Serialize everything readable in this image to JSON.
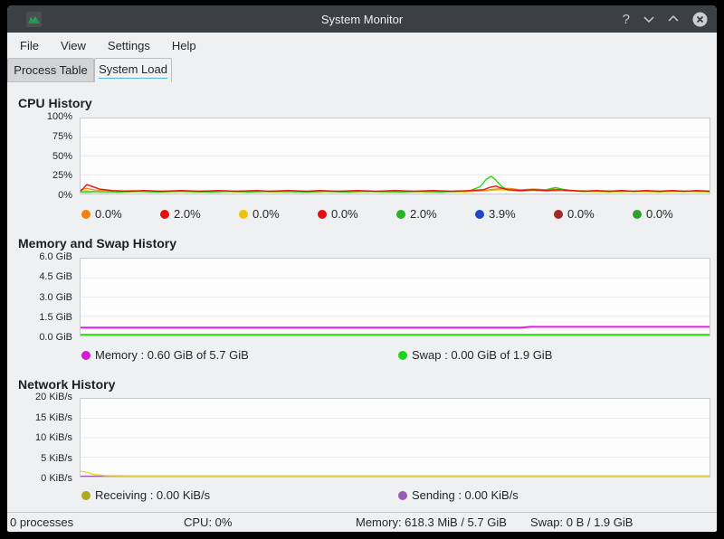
{
  "window": {
    "title": "System Monitor",
    "help_glyph": "?"
  },
  "menu": {
    "file": "File",
    "view": "View",
    "settings": "Settings",
    "help": "Help"
  },
  "tabs": {
    "process_table": "Process Table",
    "system_load": "System Load"
  },
  "cpu": {
    "title": "CPU History",
    "y_ticks": [
      "100%",
      "75%",
      "50%",
      "25%",
      "0%"
    ],
    "legend": [
      {
        "color": "#f2820d",
        "value": "0.0%"
      },
      {
        "color": "#e01010",
        "value": "2.0%"
      },
      {
        "color": "#edc211",
        "value": "0.0%"
      },
      {
        "color": "#e01010",
        "value": "0.0%"
      },
      {
        "color": "#25b525",
        "value": "2.0%"
      },
      {
        "color": "#1d46c8",
        "value": "3.9%"
      },
      {
        "color": "#9e2b25",
        "value": "0.0%"
      },
      {
        "color": "#2da12d",
        "value": "0.0%"
      }
    ],
    "chart": {
      "type": "line",
      "ymax": 100,
      "grid": [
        0.25,
        0.5,
        0.75
      ],
      "grid_color": "#e9eaeb",
      "series": [
        {
          "name": "cpu-yellow",
          "color": "#eec61a",
          "width": 1.2,
          "points": [
            [
              0,
              4
            ],
            [
              2,
              3
            ],
            [
              4,
              2.5
            ],
            [
              7,
              2
            ],
            [
              10,
              2.5
            ],
            [
              13,
              2
            ],
            [
              16,
              2.5
            ],
            [
              19,
              2
            ],
            [
              22,
              2.5
            ],
            [
              25,
              2
            ],
            [
              28,
              2.5
            ],
            [
              31,
              2
            ],
            [
              34,
              2.5
            ],
            [
              37,
              2
            ],
            [
              40,
              2.5
            ],
            [
              43,
              2
            ],
            [
              46,
              2.5
            ],
            [
              49,
              2
            ],
            [
              52,
              2.5
            ],
            [
              55,
              2
            ],
            [
              58,
              2.5
            ],
            [
              61,
              2
            ],
            [
              63,
              3
            ],
            [
              65,
              4
            ],
            [
              67,
              5
            ],
            [
              68,
              4
            ],
            [
              70,
              3
            ],
            [
              72,
              4
            ],
            [
              74,
              3
            ],
            [
              76,
              3.5
            ],
            [
              78,
              3
            ],
            [
              80,
              2.5
            ],
            [
              84,
              2
            ],
            [
              88,
              2.5
            ],
            [
              92,
              2
            ],
            [
              96,
              2.5
            ],
            [
              100,
              2
            ]
          ]
        },
        {
          "name": "cpu-orange",
          "color": "#f0820f",
          "width": 1.2,
          "points": [
            [
              0,
              5
            ],
            [
              1,
              7
            ],
            [
              2,
              5
            ],
            [
              4,
              4
            ],
            [
              6,
              3
            ],
            [
              8,
              4
            ],
            [
              11,
              3
            ],
            [
              14,
              3.5
            ],
            [
              17,
              3
            ],
            [
              20,
              3.5
            ],
            [
              23,
              3
            ],
            [
              26,
              3.5
            ],
            [
              29,
              3
            ],
            [
              32,
              3.5
            ],
            [
              35,
              3
            ],
            [
              38,
              3.5
            ],
            [
              41,
              3
            ],
            [
              44,
              3.5
            ],
            [
              47,
              3
            ],
            [
              50,
              3.5
            ],
            [
              53,
              3
            ],
            [
              56,
              3.5
            ],
            [
              59,
              3
            ],
            [
              62,
              3.5
            ],
            [
              64,
              4
            ],
            [
              66,
              6
            ],
            [
              68,
              7
            ],
            [
              69,
              6
            ],
            [
              70,
              5
            ],
            [
              72,
              6
            ],
            [
              74,
              5
            ],
            [
              75,
              6
            ],
            [
              77,
              5
            ],
            [
              79,
              4
            ],
            [
              81,
              3.5
            ],
            [
              83,
              3
            ],
            [
              85,
              3.5
            ],
            [
              87,
              3
            ],
            [
              89,
              3.5
            ],
            [
              91,
              3
            ],
            [
              93,
              3.5
            ],
            [
              95,
              3
            ],
            [
              97,
              3.5
            ],
            [
              100,
              3
            ]
          ]
        },
        {
          "name": "cpu-green",
          "color": "#2ad615",
          "width": 1.4,
          "points": [
            [
              0,
              2
            ],
            [
              3,
              2.5
            ],
            [
              6,
              2
            ],
            [
              9,
              3
            ],
            [
              12,
              2
            ],
            [
              15,
              3
            ],
            [
              18,
              2.5
            ],
            [
              21,
              2
            ],
            [
              24,
              3
            ],
            [
              27,
              2
            ],
            [
              30,
              3
            ],
            [
              33,
              2.5
            ],
            [
              36,
              2
            ],
            [
              39,
              3
            ],
            [
              42,
              2
            ],
            [
              45,
              3
            ],
            [
              48,
              2.5
            ],
            [
              51,
              2
            ],
            [
              54,
              3
            ],
            [
              57,
              2
            ],
            [
              60,
              3
            ],
            [
              62,
              4
            ],
            [
              63.5,
              9
            ],
            [
              64.5,
              19
            ],
            [
              65.3,
              23
            ],
            [
              66,
              18
            ],
            [
              67,
              9
            ],
            [
              68,
              5
            ],
            [
              69.5,
              4
            ],
            [
              71,
              5
            ],
            [
              72.5,
              4
            ],
            [
              74,
              5
            ],
            [
              75.5,
              8
            ],
            [
              76.5,
              6
            ],
            [
              78,
              4
            ],
            [
              80,
              3
            ],
            [
              83,
              3.5
            ],
            [
              86,
              3
            ],
            [
              89,
              3.5
            ],
            [
              92,
              3
            ],
            [
              95,
              3.5
            ],
            [
              98,
              3
            ],
            [
              100,
              3.5
            ]
          ]
        },
        {
          "name": "cpu-red",
          "color": "#e41414",
          "width": 1.4,
          "points": [
            [
              0,
              3
            ],
            [
              1,
              12
            ],
            [
              2,
              9
            ],
            [
              3,
              6
            ],
            [
              5,
              4
            ],
            [
              8,
              3
            ],
            [
              10,
              4
            ],
            [
              13,
              3
            ],
            [
              16,
              4
            ],
            [
              19,
              3
            ],
            [
              22,
              4
            ],
            [
              25,
              3
            ],
            [
              28,
              4
            ],
            [
              30,
              3
            ],
            [
              33,
              4
            ],
            [
              36,
              3
            ],
            [
              38,
              4
            ],
            [
              41,
              3
            ],
            [
              44,
              4
            ],
            [
              47,
              3
            ],
            [
              50,
              4
            ],
            [
              53,
              3
            ],
            [
              56,
              4
            ],
            [
              59,
              3
            ],
            [
              62,
              4
            ],
            [
              64,
              5
            ],
            [
              65,
              8
            ],
            [
              66,
              10
            ],
            [
              67,
              7
            ],
            [
              68,
              5
            ],
            [
              70,
              4
            ],
            [
              72,
              5
            ],
            [
              74,
              4
            ],
            [
              76,
              5
            ],
            [
              78,
              4
            ],
            [
              80,
              3
            ],
            [
              82,
              4
            ],
            [
              84,
              3
            ],
            [
              86,
              4
            ],
            [
              88,
              3
            ],
            [
              90,
              4
            ],
            [
              92,
              3
            ],
            [
              94,
              4
            ],
            [
              96,
              3
            ],
            [
              98,
              4
            ],
            [
              100,
              3
            ]
          ]
        }
      ]
    }
  },
  "memory": {
    "title": "Memory and Swap History",
    "y_ticks": [
      "6.0 GiB",
      "4.5 GiB",
      "3.0 GiB",
      "1.5 GiB",
      "0.0 GiB"
    ],
    "legend": [
      {
        "color": "#d718d7",
        "label": "Memory : 0.60 GiB of 5.7 GiB"
      },
      {
        "color": "#1ad61a",
        "label": "Swap : 0.00 GiB of 1.9 GiB"
      }
    ],
    "chart": {
      "type": "line",
      "ymax": 6,
      "grid": [
        0.25,
        0.5,
        0.75
      ],
      "grid_color": "#e9eaeb",
      "series": [
        {
          "name": "memory-used",
          "color": "#e81ae8",
          "width": 2,
          "points": [
            [
              0,
              0.62
            ],
            [
              30,
              0.62
            ],
            [
              55,
              0.62
            ],
            [
              70,
              0.62
            ],
            [
              71.5,
              0.68
            ],
            [
              100,
              0.68
            ]
          ]
        },
        {
          "name": "swap-used",
          "color": "#33e81a",
          "width": 2,
          "points": [
            [
              0,
              0.07
            ],
            [
              100,
              0.07
            ]
          ]
        }
      ]
    }
  },
  "network": {
    "title": "Network History",
    "y_ticks": [
      "20 KiB/s",
      "15 KiB/s",
      "10 KiB/s",
      "5 KiB/s",
      "0 KiB/s"
    ],
    "legend": [
      {
        "color": "#b0a81f",
        "label": "Receiving : 0.00 KiB/s"
      },
      {
        "color": "#9b59b6",
        "label": "Sending : 0.00 KiB/s"
      }
    ],
    "chart": {
      "type": "line",
      "ymax": 20,
      "grid": [
        0.25,
        0.5,
        0.75
      ],
      "grid_color": "#e9eaeb",
      "series": [
        {
          "name": "sending",
          "color": "#9b59b6",
          "width": 1.5,
          "points": [
            [
              0,
              0.08
            ],
            [
              100,
              0.08
            ]
          ]
        },
        {
          "name": "receiving",
          "color": "#ecdc30",
          "width": 1.5,
          "points": [
            [
              0,
              1.4
            ],
            [
              1,
              1.1
            ],
            [
              2,
              0.6
            ],
            [
              4,
              0.25
            ],
            [
              8,
              0.2
            ],
            [
              100,
              0.2
            ]
          ]
        }
      ]
    }
  },
  "statusbar": {
    "processes": "0 processes",
    "cpu": "CPU: 0%",
    "memory": "Memory: 618.3 MiB / 5.7 GiB",
    "swap": "Swap: 0 B / 1.9 GiB"
  }
}
